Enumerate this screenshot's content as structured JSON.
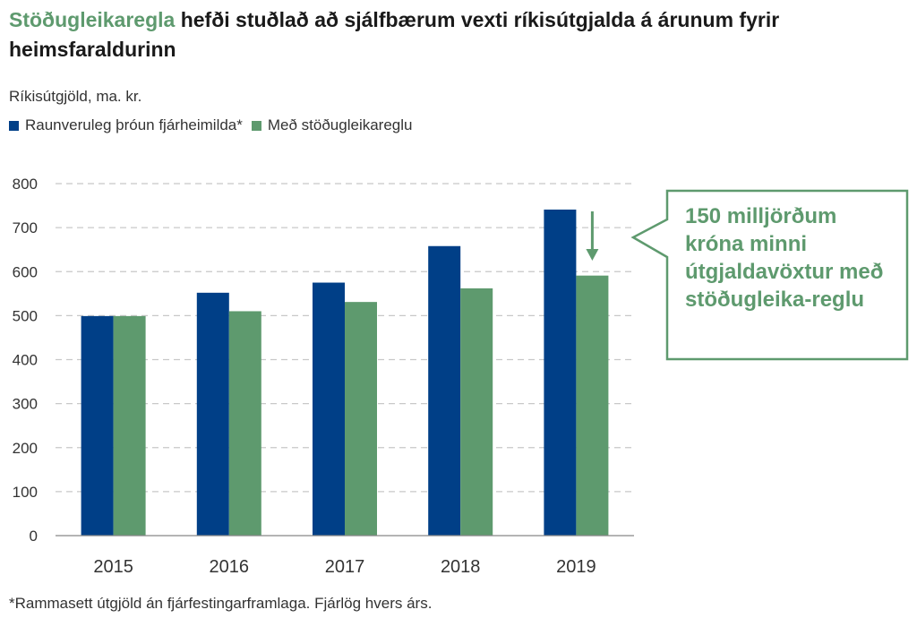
{
  "title": {
    "highlight": "Stöðugleikaregla",
    "rest": " hefði stuðlað að sjálfbærum vexti ríkisútgjalda á árunum fyrir heimsfaraldurinn"
  },
  "colors": {
    "series1": "#003f87",
    "series2": "#5e9a6e",
    "grid": "#c8c8c8",
    "axis": "#888888"
  },
  "callout": {
    "text": "150 milljörðum króna minni útgjaldavöxtur með stöðugleika-reglu"
  },
  "footnote": "*Rammasett útgjöld án fjárfestingarframlaga. Fjárlög hvers árs.",
  "chart_data": {
    "type": "bar",
    "ylabel": "Ríkisútgjöld, ma. kr.",
    "xlabel": "",
    "categories": [
      "2015",
      "2016",
      "2017",
      "2018",
      "2019"
    ],
    "series": [
      {
        "name": "Raunveruleg þróun fjárheimilda*",
        "values": [
          499,
          552,
          575,
          658,
          741
        ]
      },
      {
        "name": "Með stöðugleikareglu",
        "values": [
          499,
          510,
          531,
          562,
          591
        ]
      }
    ],
    "ylim": [
      0,
      800
    ],
    "yticks": [
      0,
      100,
      200,
      300,
      400,
      500,
      600,
      700,
      800
    ],
    "grid": true,
    "legend": "top-left"
  }
}
